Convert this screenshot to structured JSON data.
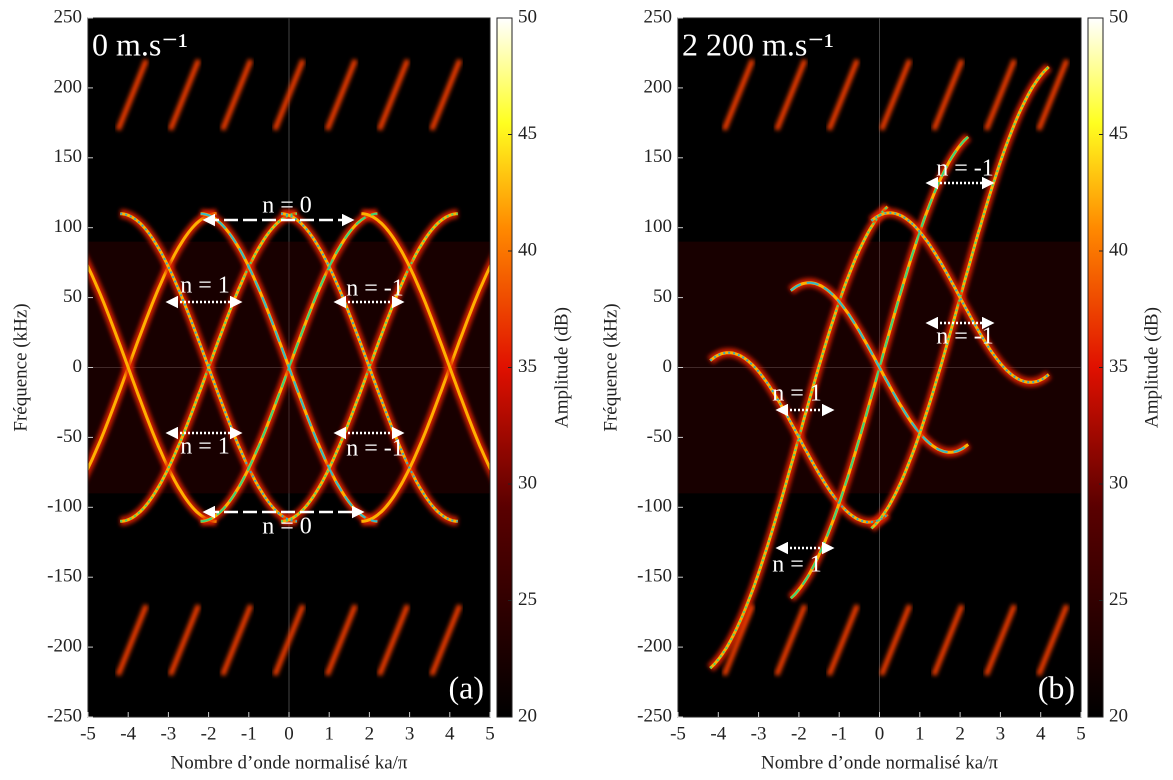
{
  "chart_data": [
    {
      "type": "heatmap",
      "annotation": "0 m.s⁻¹",
      "panel_label": "(a)",
      "xlabel": "Nombre d’onde normalisé ka/π",
      "ylabel": "Fréquence (kHz)",
      "colorbar_label": "Amplitude (dB)",
      "xlim": [
        -5,
        5
      ],
      "xticks": [
        -5,
        -4,
        -3,
        -2,
        -1,
        0,
        1,
        2,
        3,
        4,
        5
      ],
      "ylim": [
        -250,
        250
      ],
      "yticks": [
        -250,
        -200,
        -150,
        -100,
        -50,
        0,
        50,
        100,
        150,
        200,
        250
      ],
      "clim": [
        20,
        50
      ],
      "cticks": [
        20,
        25,
        30,
        35,
        40,
        45,
        50
      ],
      "colormap": "hot",
      "labels": [
        "n = 0",
        "n = 1",
        "n = -1",
        "n = 1",
        "n = -1",
        "n = 0"
      ]
    },
    {
      "type": "heatmap",
      "annotation": "2 200 m.s⁻¹",
      "panel_label": "(b)",
      "xlabel": "Nombre d’onde normalisé ka/π",
      "ylabel": "Fréquence (kHz)",
      "colorbar_label": "Amplitude (dB)",
      "xlim": [
        -5,
        5
      ],
      "xticks": [
        -5,
        -4,
        -3,
        -2,
        -1,
        0,
        1,
        2,
        3,
        4,
        5
      ],
      "ylim": [
        -250,
        250
      ],
      "yticks": [
        -250,
        -200,
        -150,
        -100,
        -50,
        0,
        50,
        100,
        150,
        200,
        250
      ],
      "clim": [
        20,
        50
      ],
      "cticks": [
        20,
        25,
        30,
        35,
        40,
        45,
        50
      ],
      "colormap": "hot",
      "labels": [
        "n = -1",
        "n = -1",
        "n = 1",
        "n = 1"
      ]
    }
  ]
}
